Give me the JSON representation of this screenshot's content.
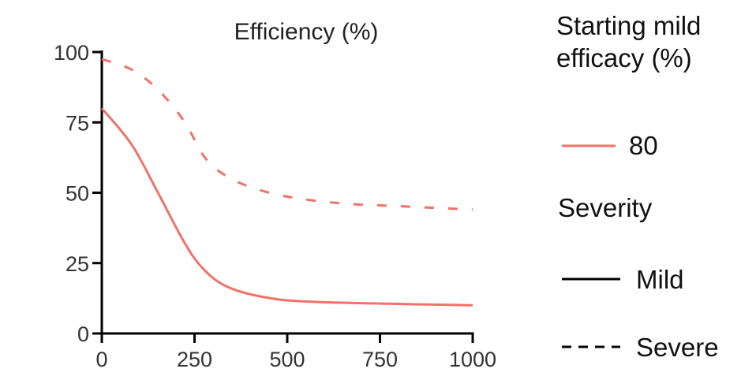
{
  "chart_data": {
    "type": "line",
    "title": "Efficiency (%)",
    "xlabel": "",
    "ylabel": "",
    "xlim": [
      0,
      1000
    ],
    "ylim": [
      0,
      100
    ],
    "xticks": [
      0,
      250,
      500,
      750,
      1000
    ],
    "yticks": [
      0,
      25,
      50,
      75,
      100
    ],
    "grid": false,
    "legend_placement": "right",
    "color": "#f07268",
    "series": [
      {
        "name": "Mild",
        "style": "solid",
        "x": [
          0,
          80,
          150,
          221,
          271,
          335,
          434,
          576,
          1000
        ],
        "y": [
          80,
          67.2,
          50.4,
          32.7,
          23.3,
          16.8,
          13.0,
          11.2,
          10.0
        ]
      },
      {
        "name": "Severe",
        "style": "dashed",
        "x": [
          0,
          80,
          150,
          221,
          278,
          335,
          406,
          505,
          647,
          789,
          1000
        ],
        "y": [
          97.5,
          93.8,
          86.8,
          75.6,
          62.5,
          56.0,
          51.8,
          48.5,
          46.2,
          45.3,
          44.0
        ]
      }
    ]
  },
  "legend": {
    "color_title": "Starting mild efficacy (%)",
    "color_entry": "80",
    "style_title": "Severity",
    "style_entries": [
      "Mild",
      "Severe"
    ]
  }
}
